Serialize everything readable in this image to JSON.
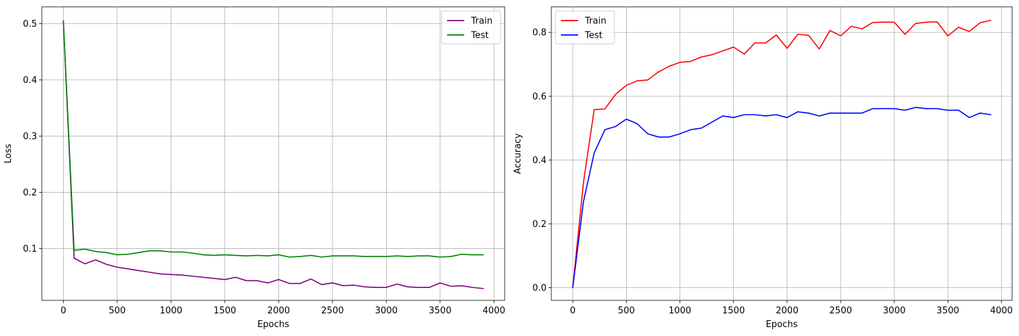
{
  "chart_data": [
    {
      "type": "line",
      "title": "",
      "xlabel": "Epochs",
      "ylabel": "Loss",
      "xlim": [
        -200,
        4100
      ],
      "ylim": [
        0.008,
        0.53
      ],
      "xticks": [
        0,
        500,
        1000,
        1500,
        2000,
        2500,
        3000,
        3500,
        4000
      ],
      "yticks": [
        0.1,
        0.2,
        0.3,
        0.4,
        0.5
      ],
      "ytick_labels": [
        "0.1",
        "0.2",
        "0.3",
        "0.4",
        "0.5"
      ],
      "grid": true,
      "legend_position": "upper right",
      "x": [
        0,
        100,
        200,
        300,
        400,
        500,
        600,
        700,
        800,
        900,
        1000,
        1100,
        1200,
        1300,
        1400,
        1500,
        1600,
        1700,
        1800,
        1900,
        2000,
        2100,
        2200,
        2300,
        2400,
        2500,
        2600,
        2700,
        2800,
        2900,
        3000,
        3100,
        3200,
        3300,
        3400,
        3500,
        3600,
        3700,
        3800,
        3900
      ],
      "series": [
        {
          "name": "Train",
          "color": "#800080",
          "values": [
            0.505,
            0.083,
            0.073,
            0.08,
            0.072,
            0.067,
            0.064,
            0.061,
            0.058,
            0.055,
            0.054,
            0.053,
            0.051,
            0.049,
            0.047,
            0.045,
            0.049,
            0.043,
            0.043,
            0.039,
            0.045,
            0.038,
            0.038,
            0.046,
            0.036,
            0.039,
            0.034,
            0.035,
            0.032,
            0.031,
            0.031,
            0.037,
            0.032,
            0.031,
            0.031,
            0.039,
            0.033,
            0.034,
            0.031,
            0.029
          ]
        },
        {
          "name": "Test",
          "color": "#008000",
          "values": [
            0.505,
            0.097,
            0.099,
            0.095,
            0.093,
            0.089,
            0.09,
            0.093,
            0.096,
            0.096,
            0.094,
            0.094,
            0.092,
            0.089,
            0.088,
            0.089,
            0.088,
            0.087,
            0.088,
            0.087,
            0.089,
            0.085,
            0.086,
            0.088,
            0.085,
            0.087,
            0.087,
            0.087,
            0.086,
            0.086,
            0.086,
            0.087,
            0.086,
            0.087,
            0.087,
            0.085,
            0.086,
            0.09,
            0.089,
            0.089
          ]
        }
      ]
    },
    {
      "type": "line",
      "title": "",
      "xlabel": "Epochs",
      "ylabel": "Accuracy",
      "xlim": [
        -200,
        4100
      ],
      "ylim": [
        -0.04,
        0.88
      ],
      "xticks": [
        0,
        500,
        1000,
        1500,
        2000,
        2500,
        3000,
        3500,
        4000
      ],
      "yticks": [
        0.0,
        0.2,
        0.4,
        0.6,
        0.8
      ],
      "ytick_labels": [
        "0.0",
        "0.2",
        "0.4",
        "0.6",
        "0.8"
      ],
      "grid": true,
      "legend_position": "upper left",
      "x": [
        0,
        100,
        200,
        300,
        400,
        500,
        600,
        700,
        800,
        900,
        1000,
        1100,
        1200,
        1300,
        1400,
        1500,
        1600,
        1700,
        1800,
        1900,
        2000,
        2100,
        2200,
        2300,
        2400,
        2500,
        2600,
        2700,
        2800,
        2900,
        3000,
        3100,
        3200,
        3300,
        3400,
        3500,
        3600,
        3700,
        3800,
        3900
      ],
      "series": [
        {
          "name": "Train",
          "color": "#ff0000",
          "values": [
            0.0,
            0.33,
            0.558,
            0.56,
            0.606,
            0.634,
            0.648,
            0.651,
            0.676,
            0.694,
            0.706,
            0.709,
            0.723,
            0.73,
            0.742,
            0.754,
            0.732,
            0.767,
            0.767,
            0.792,
            0.75,
            0.794,
            0.791,
            0.748,
            0.806,
            0.789,
            0.819,
            0.811,
            0.831,
            0.832,
            0.832,
            0.794,
            0.828,
            0.832,
            0.833,
            0.789,
            0.816,
            0.803,
            0.83,
            0.838
          ]
        },
        {
          "name": "Test",
          "color": "#0000ff",
          "values": [
            0.0,
            0.27,
            0.422,
            0.495,
            0.505,
            0.528,
            0.514,
            0.482,
            0.472,
            0.472,
            0.482,
            0.495,
            0.5,
            0.519,
            0.538,
            0.533,
            0.542,
            0.542,
            0.538,
            0.542,
            0.533,
            0.551,
            0.547,
            0.538,
            0.547,
            0.547,
            0.547,
            0.547,
            0.561,
            0.561,
            0.561,
            0.556,
            0.565,
            0.561,
            0.561,
            0.556,
            0.556,
            0.533,
            0.547,
            0.542
          ]
        }
      ]
    }
  ]
}
